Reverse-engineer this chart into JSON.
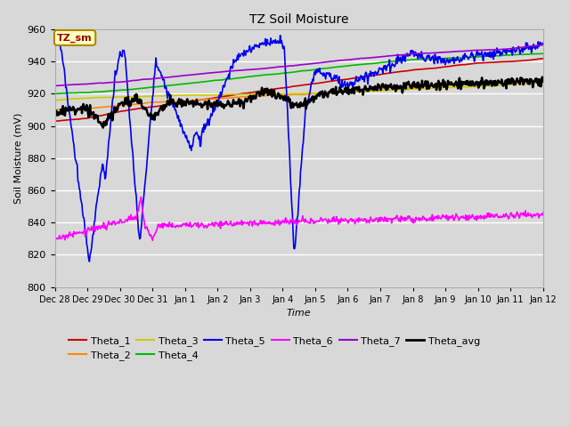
{
  "title": "TZ Soil Moisture",
  "xlabel": "Time",
  "ylabel": "Soil Moisture (mV)",
  "ylim": [
    800,
    960
  ],
  "yticks": [
    800,
    820,
    840,
    860,
    880,
    900,
    920,
    940,
    960
  ],
  "bg_color": "#d8d8d8",
  "series": {
    "Theta_1": {
      "color": "#cc0000",
      "lw": 1.2
    },
    "Theta_2": {
      "color": "#ff8800",
      "lw": 1.2
    },
    "Theta_3": {
      "color": "#cccc00",
      "lw": 1.2
    },
    "Theta_4": {
      "color": "#00bb00",
      "lw": 1.2
    },
    "Theta_5": {
      "color": "#0000ee",
      "lw": 1.2
    },
    "Theta_6": {
      "color": "#ff00ff",
      "lw": 1.2
    },
    "Theta_7": {
      "color": "#9900cc",
      "lw": 1.2
    },
    "Theta_avg": {
      "color": "#000000",
      "lw": 1.8
    }
  },
  "legend_box_text": "TZ_sm",
  "tick_labels": [
    "Dec 28",
    "Dec 29",
    "Dec 30",
    "Dec 31",
    "Jan 1",
    "Jan 2",
    "Jan 3",
    "Jan 4",
    "Jan 5",
    "Jan 6",
    "Jan 7",
    "Jan 8",
    "Jan 9",
    "Jan 10",
    "Jan 11",
    "Jan 12"
  ]
}
